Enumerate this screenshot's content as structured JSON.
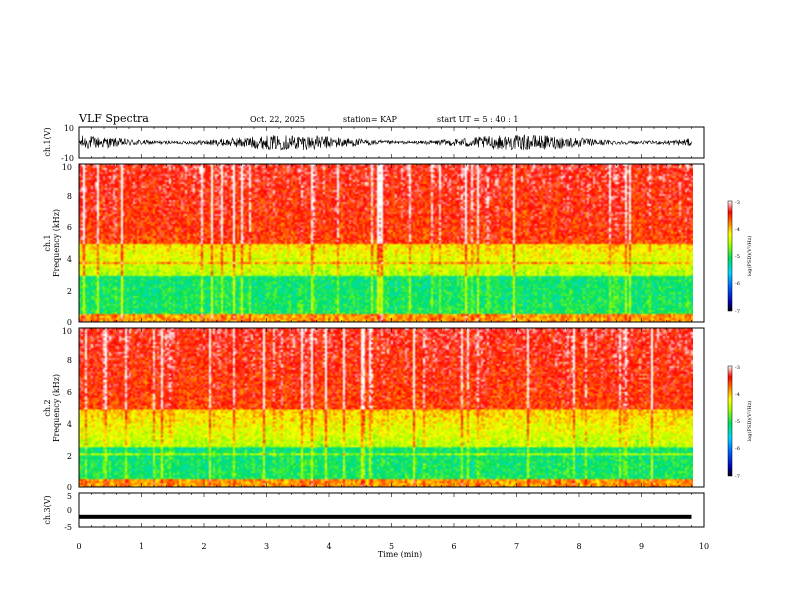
{
  "header": {
    "title": "VLF Spectra",
    "date": "Oct. 22, 2025",
    "station": "station= KAP",
    "start_ut": "start  UT =   5 : 40 : 1"
  },
  "chart_data": [
    {
      "type": "line",
      "id": "ch1-waveform",
      "ylabel": "ch.1(V)",
      "ylim": [
        -10,
        10
      ],
      "yticks": [
        "10",
        "-10"
      ],
      "xlim": [
        0,
        10
      ],
      "trace_end_min": 9.8,
      "approx_range": [
        -5,
        5
      ]
    },
    {
      "type": "heatmap",
      "id": "ch1-spectrogram",
      "ylabel_line1": "ch.1",
      "ylabel_line2": "Frequency  (kHz)",
      "xlim": [
        0,
        10
      ],
      "ylim": [
        0,
        10
      ],
      "yticks": [
        "0",
        "2",
        "4",
        "6",
        "8",
        "10"
      ],
      "colorbar": {
        "label": "log(PSD)(V²/Hz)",
        "range": [
          -7,
          -3
        ],
        "ticks": [
          "-3",
          "-4",
          "-5",
          "-6",
          "-7"
        ]
      }
    },
    {
      "type": "heatmap",
      "id": "ch2-spectrogram",
      "ylabel_line1": "ch.2",
      "ylabel_line2": "Frequency  (kHz)",
      "xlim": [
        0,
        10
      ],
      "ylim": [
        0,
        10
      ],
      "yticks": [
        "0",
        "2",
        "4",
        "6",
        "8",
        "10"
      ],
      "colorbar": {
        "label": "log(PSD)(V²/Hz)",
        "range": [
          -7,
          -3
        ],
        "ticks": [
          "-3",
          "-4",
          "-5",
          "-6",
          "-7"
        ]
      }
    },
    {
      "type": "line",
      "id": "ch3-waveform",
      "ylabel": "ch.3(V)",
      "ylim": [
        -5,
        5
      ],
      "yticks": [
        "5",
        "0",
        "-5"
      ],
      "xlim": [
        0,
        10
      ],
      "trace_end_min": 9.8,
      "approx_level": -2
    }
  ],
  "xaxis": {
    "label": "Time  (min)",
    "ticks": [
      "0",
      "1",
      "2",
      "3",
      "4",
      "5",
      "6",
      "7",
      "8",
      "9",
      "10"
    ]
  }
}
